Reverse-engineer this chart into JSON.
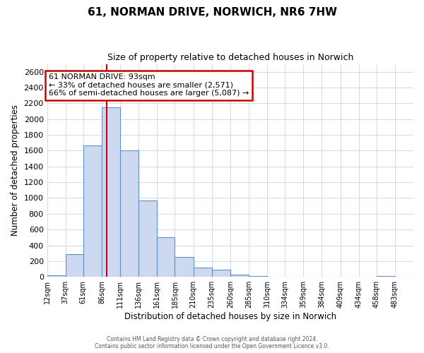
{
  "title": "61, NORMAN DRIVE, NORWICH, NR6 7HW",
  "subtitle": "Size of property relative to detached houses in Norwich",
  "xlabel": "Distribution of detached houses by size in Norwich",
  "ylabel": "Number of detached properties",
  "annotation_line1": "61 NORMAN DRIVE: 93sqm",
  "annotation_line2": "← 33% of detached houses are smaller (2,571)",
  "annotation_line3": "66% of semi-detached houses are larger (5,087) →",
  "property_line_x": 93,
  "bar_color": "#ccd9f0",
  "bar_edge_color": "#6090c8",
  "property_line_color": "#cc0000",
  "annotation_box_edge_color": "#cc0000",
  "grid_color": "#c8d4e8",
  "background_color": "#ffffff",
  "bins": [
    12,
    37,
    61,
    86,
    111,
    136,
    161,
    185,
    210,
    235,
    260,
    285,
    310,
    334,
    359,
    384,
    409,
    434,
    458,
    483,
    508
  ],
  "counts": [
    20,
    290,
    1670,
    2150,
    1600,
    965,
    505,
    250,
    120,
    95,
    30,
    10,
    5,
    2,
    2,
    2,
    0,
    0,
    10,
    0
  ],
  "ylim": [
    0,
    2700
  ],
  "yticks": [
    0,
    200,
    400,
    600,
    800,
    1000,
    1200,
    1400,
    1600,
    1800,
    2000,
    2200,
    2400,
    2600
  ],
  "footer_line1": "Contains HM Land Registry data © Crown copyright and database right 2024.",
  "footer_line2": "Contains public sector information licensed under the Open Government Licence v3.0."
}
